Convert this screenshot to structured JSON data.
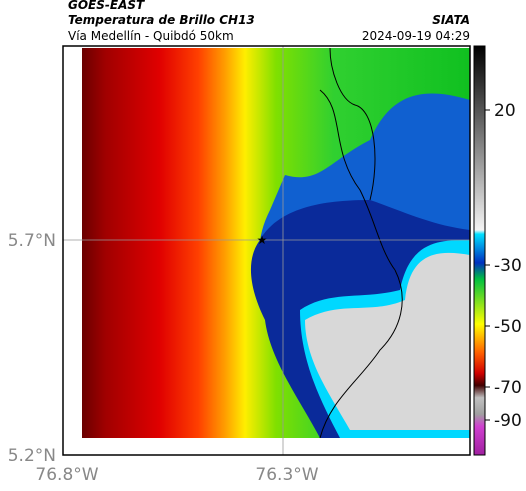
{
  "header": {
    "title": "GOES-EAST",
    "subtitle": "Temperatura de Brillo CH13",
    "region": "Vía Medellín - Quibdó 50km",
    "source": "SIATA",
    "timestamp": "2024-09-19 04:29"
  },
  "map": {
    "lat_labels": [
      "5.7°N",
      "5.2°N"
    ],
    "lon_labels": [
      "76.8°W",
      "76.3°W"
    ]
  },
  "colorbar": {
    "ticks": [
      20,
      -30,
      -50,
      -70,
      -90
    ]
  }
}
